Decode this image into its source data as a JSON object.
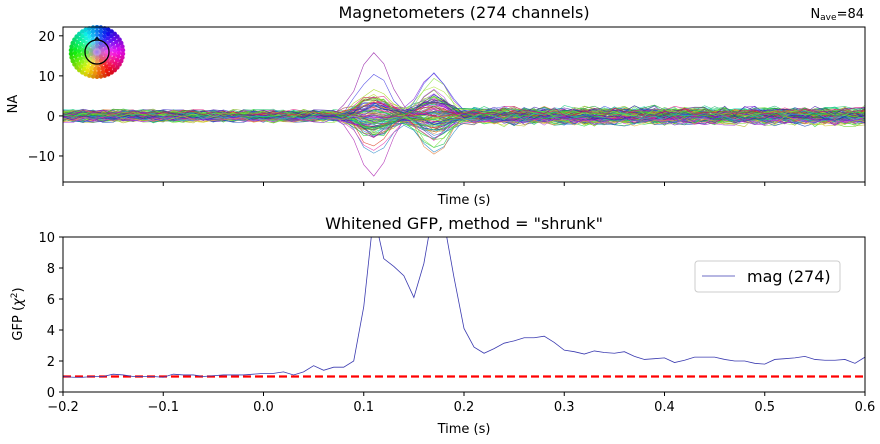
{
  "chart_data": [
    {
      "type": "line",
      "title": "Magnetometers (274 channels)",
      "annotation": "N",
      "annotation_sub": "ave",
      "annotation_value": "=84",
      "xlabel": "Time (s)",
      "ylabel": "NA",
      "xlim": [
        -0.2,
        0.6
      ],
      "ylim": [
        -16.5,
        22.2
      ],
      "xticks": [
        -0.2,
        -0.1,
        0.0,
        0.1,
        0.2,
        0.3,
        0.4,
        0.5,
        0.6
      ],
      "xtick_labels_shown": false,
      "yticks": [
        -10,
        0,
        10,
        20
      ],
      "ytick_labels": [
        "−10",
        "0",
        "10",
        "20"
      ],
      "n_channels": 274,
      "grid": false,
      "inset": "sensor-topomap-color-legend"
    },
    {
      "type": "line",
      "title": "Whitened GFP, method = \"shrunk\"",
      "xlabel": "Time (s)",
      "ylabel": "GFP (χ²)",
      "ylabel_main": "GFP (",
      "ylabel_chi": "χ",
      "ylabel_sup": "2",
      "ylabel_end": ")",
      "xlim": [
        -0.2,
        0.6
      ],
      "ylim": [
        0,
        10
      ],
      "xticks": [
        -0.2,
        -0.1,
        0.0,
        0.1,
        0.2,
        0.3,
        0.4,
        0.5,
        0.6
      ],
      "xtick_labels": [
        "−0.2",
        "−0.1",
        "0.0",
        "0.1",
        "0.2",
        "0.3",
        "0.4",
        "0.5",
        "0.6"
      ],
      "yticks": [
        0,
        2,
        4,
        6,
        8,
        10
      ],
      "ytick_labels": [
        "0",
        "2",
        "4",
        "6",
        "8",
        "10"
      ],
      "grid": false,
      "legend_placement": "upper-right",
      "series": [
        {
          "name": "mag (274)",
          "color": "#3b3bb0",
          "x_start": -0.2,
          "x_step": 0.01,
          "values": [
            1.0,
            0.95,
            0.95,
            1.0,
            1.0,
            1.15,
            1.1,
            1.0,
            1.0,
            1.0,
            0.95,
            1.15,
            1.1,
            1.1,
            1.0,
            1.05,
            1.1,
            1.1,
            1.1,
            1.15,
            1.2,
            1.2,
            1.3,
            1.1,
            1.3,
            1.7,
            1.4,
            1.6,
            1.6,
            2.0,
            5.5,
            11.5,
            8.6,
            8.1,
            7.5,
            6.1,
            8.3,
            12.0,
            11.0,
            7.4,
            4.1,
            2.9,
            2.5,
            2.8,
            3.15,
            3.3,
            3.5,
            3.5,
            3.6,
            3.2,
            2.7,
            2.6,
            2.45,
            2.65,
            2.55,
            2.5,
            2.6,
            2.3,
            2.1,
            2.15,
            2.2,
            1.9,
            2.05,
            2.25,
            2.25,
            2.25,
            2.1,
            2.0,
            2.0,
            1.85,
            1.8,
            2.1,
            2.15,
            2.2,
            2.3,
            2.1,
            2.05,
            2.05,
            2.1,
            1.85,
            2.25
          ]
        }
      ],
      "reference_line": {
        "y": 1,
        "color": "#ff0000",
        "style": "dashed"
      }
    }
  ]
}
